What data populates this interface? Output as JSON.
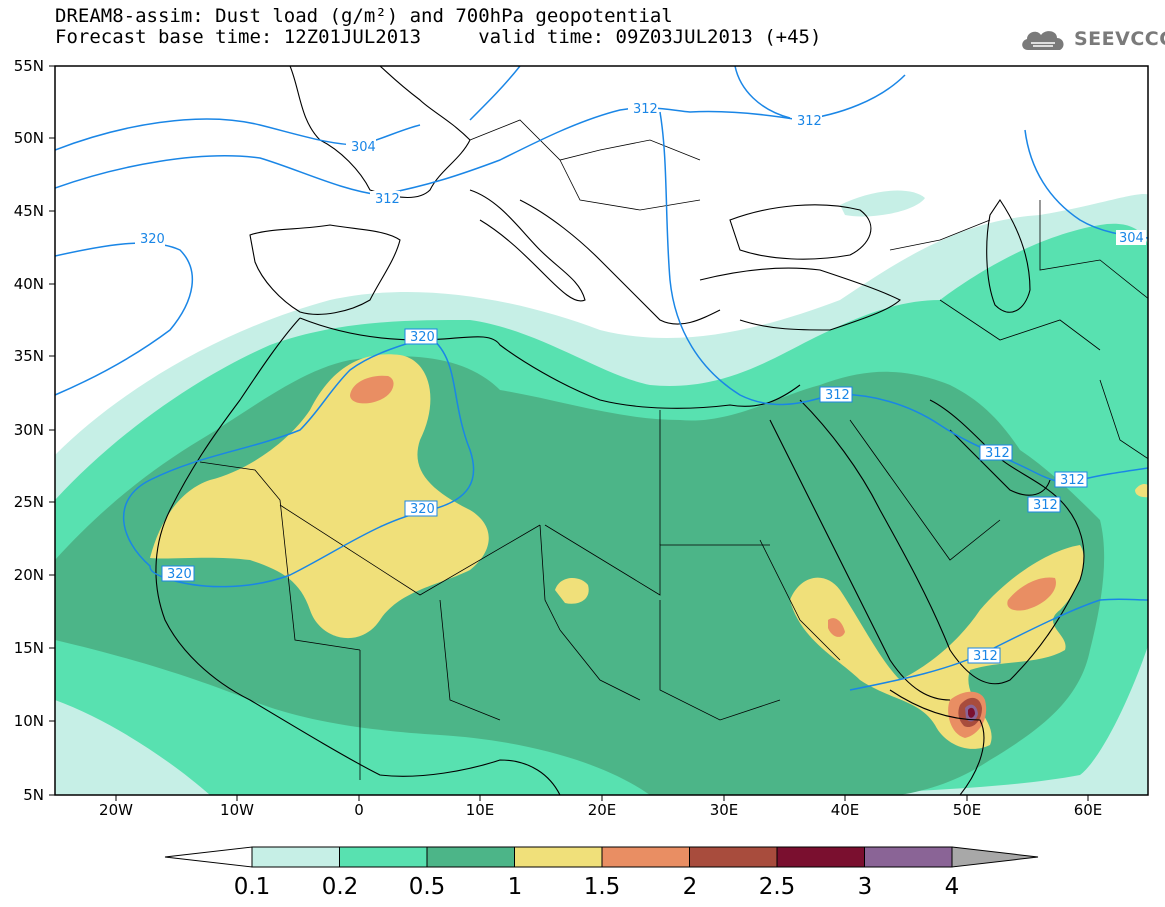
{
  "header": {
    "title_line1": "DREAM8-assim: Dust load (g/m²) and 700hPa geopotential",
    "title_line2": "Forecast base time: 12Z01JUL2013     valid time: 09Z03JUL2013 (+45)"
  },
  "logo": {
    "text": "SEEVCCC",
    "icon": "cloud-logo-icon",
    "color": "#7a7a7a"
  },
  "map": {
    "lat_labels": [
      "55N",
      "50N",
      "45N",
      "40N",
      "35N",
      "30N",
      "25N",
      "20N",
      "15N",
      "10N",
      "5N"
    ],
    "lon_labels": [
      "20W",
      "10W",
      "0",
      "10E",
      "20E",
      "30E",
      "40E",
      "50E",
      "60E"
    ],
    "contour_color": "#1a86e6",
    "contour_labels": [
      {
        "id": "c1",
        "text": "312"
      },
      {
        "id": "c2",
        "text": "312"
      },
      {
        "id": "c3",
        "text": "304"
      },
      {
        "id": "c4",
        "text": "312"
      },
      {
        "id": "c5",
        "text": "320"
      },
      {
        "id": "c6",
        "text": "304"
      },
      {
        "id": "c7",
        "text": "320"
      },
      {
        "id": "c8",
        "text": "320"
      },
      {
        "id": "c9",
        "text": "320"
      },
      {
        "id": "c10",
        "text": "312"
      },
      {
        "id": "c11",
        "text": "312"
      },
      {
        "id": "c12",
        "text": "312"
      },
      {
        "id": "c13",
        "text": "312"
      },
      {
        "id": "c14",
        "text": "312"
      }
    ]
  },
  "colorbar": {
    "labels": [
      "0.1",
      "0.2",
      "0.5",
      "1",
      "1.5",
      "2",
      "2.5",
      "3",
      "4"
    ],
    "colors": [
      "#c6efe6",
      "#58e1b0",
      "#4cb588",
      "#f0e07a",
      "#e98e63",
      "#a84c3d",
      "#7a0f2f",
      "#8a6496",
      "#a8a8a8"
    ]
  }
}
